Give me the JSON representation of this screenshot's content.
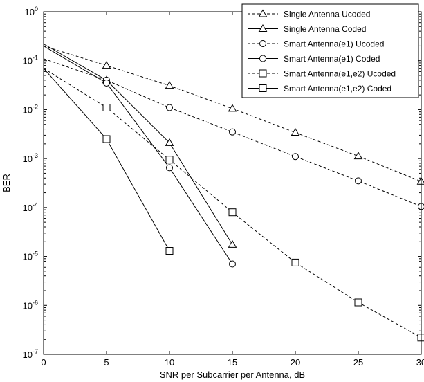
{
  "chart_data": {
    "type": "line",
    "title": "",
    "xlabel": "SNR per Subcarrier per Antenna, dB",
    "ylabel": "BER",
    "xlim": [
      0,
      30
    ],
    "ylim": [
      1e-07,
      1
    ],
    "yscale": "log",
    "grid": false,
    "legend_position": "top-right",
    "x_ticks": [
      0,
      5,
      10,
      15,
      20,
      25,
      30
    ],
    "x_tick_labels": [
      "0",
      "5",
      "10",
      "15",
      "20",
      "25",
      "30"
    ],
    "y_ticks": [
      {
        "base": "10",
        "exp": "0"
      },
      {
        "base": "10",
        "exp": "-1"
      },
      {
        "base": "10",
        "exp": "-2"
      },
      {
        "base": "10",
        "exp": "-3"
      },
      {
        "base": "10",
        "exp": "-4"
      },
      {
        "base": "10",
        "exp": "-5"
      },
      {
        "base": "10",
        "exp": "-6"
      },
      {
        "base": "10",
        "exp": "-7"
      }
    ],
    "series": [
      {
        "name": "Single Antenna Ucoded",
        "line_style": "dashed",
        "marker": "triangle",
        "x": [
          0,
          5,
          10,
          15,
          20,
          25,
          30
        ],
        "y": [
          0.2,
          0.08,
          0.031,
          0.0105,
          0.0034,
          0.00112,
          0.00034
        ]
      },
      {
        "name": "Single Antenna Coded",
        "line_style": "solid",
        "marker": "triangle",
        "x": [
          0,
          5,
          10,
          15
        ],
        "y": [
          0.22,
          0.04,
          0.0021,
          1.75e-05
        ]
      },
      {
        "name": "Smart Antenna(e1) Ucoded",
        "line_style": "dashed",
        "marker": "circle",
        "x": [
          0,
          5,
          10,
          15,
          20,
          25,
          30
        ],
        "y": [
          0.11,
          0.04,
          0.011,
          0.0035,
          0.0011,
          0.00035,
          0.000105
        ]
      },
      {
        "name": "Smart Antenna(e1) Coded",
        "line_style": "solid",
        "marker": "circle",
        "x": [
          0,
          5,
          10,
          15
        ],
        "y": [
          0.2,
          0.035,
          0.00065,
          7e-06
        ]
      },
      {
        "name": "Smart Antenna(e1,e2) Ucoded",
        "line_style": "dashed",
        "marker": "square",
        "x": [
          0,
          5,
          10,
          15,
          20,
          25,
          30
        ],
        "y": [
          0.07,
          0.011,
          0.00095,
          8e-05,
          7.5e-06,
          1.15e-06,
          2.2e-07
        ]
      },
      {
        "name": "Smart Antenna(e1,e2) Coded",
        "line_style": "solid",
        "marker": "square",
        "x": [
          0,
          5,
          10
        ],
        "y": [
          0.07,
          0.0025,
          1.3e-05
        ]
      }
    ]
  }
}
